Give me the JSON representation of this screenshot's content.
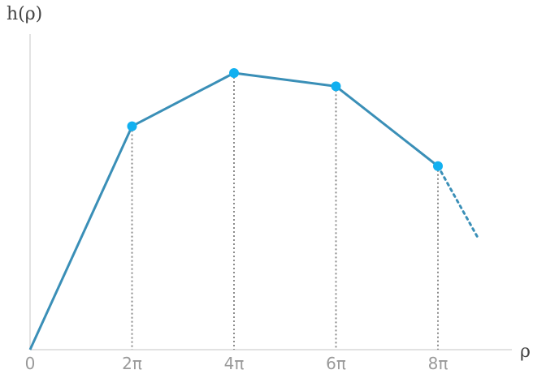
{
  "chart_data": {
    "type": "line",
    "title": "",
    "ylabel": "h(ρ)",
    "xlabel": "ρ",
    "x_tick_labels": [
      "0",
      "2π",
      "4π",
      "6π",
      "8π"
    ],
    "x_tick_values": [
      0,
      6.2832,
      12.5664,
      18.8496,
      25.1327
    ],
    "xlim": [
      0,
      28.6
    ],
    "ylim": [
      0,
      1.12
    ],
    "series": [
      {
        "x": [
          0,
          6.2832,
          12.5664,
          18.8496,
          25.1327
        ],
        "y": [
          0,
          0.84,
          1.04,
          0.99,
          0.69
        ],
        "marker_indices": [
          1,
          2,
          3,
          4
        ],
        "dropline_indices": [
          1,
          2,
          3,
          4
        ],
        "color": "#3a8fb7",
        "marker_color": "#12b0f0"
      }
    ],
    "continuation": {
      "x": [
        25.1327,
        27.6
      ],
      "y": [
        0.69,
        0.42
      ],
      "style": "dotted"
    },
    "axis_color": "#d0d0d0",
    "dropline_color": "#8c8c8c",
    "grid": false
  }
}
